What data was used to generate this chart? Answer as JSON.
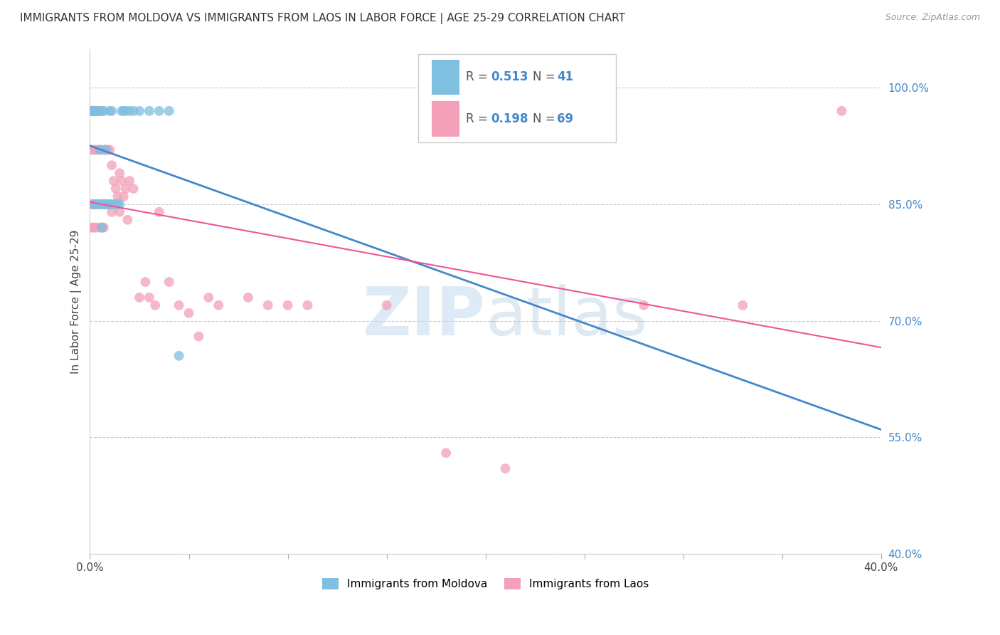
{
  "title": "IMMIGRANTS FROM MOLDOVA VS IMMIGRANTS FROM LAOS IN LABOR FORCE | AGE 25-29 CORRELATION CHART",
  "source": "Source: ZipAtlas.com",
  "ylabel_label": "In Labor Force | Age 25-29",
  "x_min": 0.0,
  "x_max": 0.4,
  "y_min": 0.4,
  "y_max": 1.05,
  "x_ticks": [
    0.0,
    0.05,
    0.1,
    0.15,
    0.2,
    0.25,
    0.3,
    0.35,
    0.4
  ],
  "y_ticks": [
    0.4,
    0.55,
    0.7,
    0.85,
    1.0
  ],
  "y_tick_labels": [
    "40.0%",
    "55.0%",
    "70.0%",
    "85.0%",
    "100.0%"
  ],
  "moldova_color": "#7fbfdf",
  "laos_color": "#f4a0b8",
  "moldova_line_color": "#4488cc",
  "laos_line_color": "#ee5599",
  "legend_blue_r": "R = 0.513",
  "legend_blue_n": "N = 41",
  "legend_pink_r": "R = 0.198",
  "legend_pink_n": "N = 69",
  "moldova_label": "Immigrants from Moldova",
  "laos_label": "Immigrants from Laos",
  "moldova_x": [
    0.001,
    0.001,
    0.001,
    0.001,
    0.002,
    0.002,
    0.002,
    0.002,
    0.003,
    0.003,
    0.003,
    0.003,
    0.004,
    0.004,
    0.005,
    0.005,
    0.005,
    0.006,
    0.006,
    0.007,
    0.007,
    0.008,
    0.008,
    0.009,
    0.01,
    0.01,
    0.011,
    0.012,
    0.013,
    0.014,
    0.015,
    0.016,
    0.017,
    0.018,
    0.02,
    0.022,
    0.025,
    0.03,
    0.035,
    0.04,
    0.045
  ],
  "moldova_y": [
    0.97,
    0.97,
    0.97,
    0.97,
    0.97,
    0.97,
    0.97,
    0.85,
    0.97,
    0.85,
    0.97,
    0.85,
    0.97,
    0.85,
    0.97,
    0.92,
    0.85,
    0.85,
    0.82,
    0.97,
    0.85,
    0.92,
    0.85,
    0.85,
    0.97,
    0.85,
    0.97,
    0.85,
    0.85,
    0.85,
    0.85,
    0.97,
    0.97,
    0.97,
    0.97,
    0.97,
    0.97,
    0.97,
    0.97,
    0.97,
    0.655
  ],
  "laos_x": [
    0.001,
    0.001,
    0.001,
    0.001,
    0.001,
    0.002,
    0.002,
    0.002,
    0.002,
    0.002,
    0.003,
    0.003,
    0.003,
    0.003,
    0.003,
    0.004,
    0.004,
    0.004,
    0.005,
    0.005,
    0.005,
    0.005,
    0.006,
    0.006,
    0.006,
    0.007,
    0.007,
    0.007,
    0.008,
    0.008,
    0.009,
    0.009,
    0.01,
    0.01,
    0.011,
    0.011,
    0.012,
    0.013,
    0.014,
    0.015,
    0.015,
    0.016,
    0.017,
    0.018,
    0.019,
    0.02,
    0.022,
    0.025,
    0.028,
    0.03,
    0.033,
    0.035,
    0.04,
    0.045,
    0.05,
    0.055,
    0.06,
    0.065,
    0.08,
    0.09,
    0.1,
    0.11,
    0.15,
    0.18,
    0.21,
    0.24,
    0.28,
    0.33,
    0.38
  ],
  "laos_y": [
    0.97,
    0.92,
    0.85,
    0.85,
    0.82,
    0.97,
    0.92,
    0.85,
    0.85,
    0.82,
    0.97,
    0.92,
    0.85,
    0.85,
    0.82,
    0.97,
    0.92,
    0.85,
    0.97,
    0.92,
    0.85,
    0.82,
    0.97,
    0.85,
    0.82,
    0.92,
    0.85,
    0.82,
    0.92,
    0.85,
    0.92,
    0.85,
    0.92,
    0.85,
    0.9,
    0.84,
    0.88,
    0.87,
    0.86,
    0.89,
    0.84,
    0.88,
    0.86,
    0.87,
    0.83,
    0.88,
    0.87,
    0.73,
    0.75,
    0.73,
    0.72,
    0.84,
    0.75,
    0.72,
    0.71,
    0.68,
    0.73,
    0.72,
    0.73,
    0.72,
    0.72,
    0.72,
    0.72,
    0.53,
    0.51,
    0.97,
    0.72,
    0.72,
    0.97
  ]
}
